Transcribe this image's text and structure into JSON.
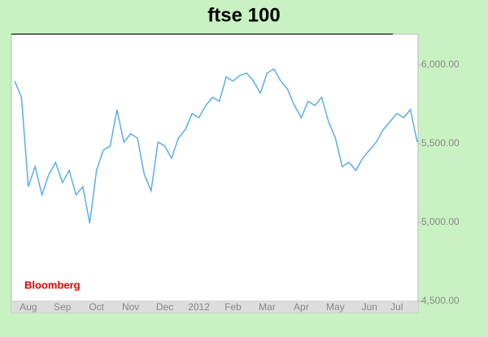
{
  "chart_data": {
    "type": "line",
    "title": "ftse 100",
    "source": "Bloomberg",
    "categories": [
      null,
      null,
      "Aug",
      null,
      null,
      null,
      null,
      "Sep",
      null,
      null,
      null,
      null,
      "Oct",
      null,
      null,
      null,
      null,
      "Nov",
      null,
      null,
      null,
      null,
      "Dec",
      null,
      null,
      null,
      null,
      "2012",
      null,
      null,
      null,
      null,
      "Feb",
      null,
      null,
      null,
      null,
      "Mar",
      null,
      null,
      null,
      null,
      "Apr",
      null,
      null,
      null,
      null,
      "May",
      null,
      null,
      null,
      null,
      "Jun",
      null,
      null,
      null,
      "Jul",
      null,
      null,
      null
    ],
    "series": [
      {
        "color": "#5aaee6",
        "values": [
          5897,
          5794,
          5227,
          5355,
          5175,
          5304,
          5381,
          5253,
          5330,
          5175,
          5227,
          4995,
          5330,
          5459,
          5485,
          5716,
          5510,
          5562,
          5536,
          5304,
          5201,
          5510,
          5485,
          5407,
          5536,
          5588,
          5691,
          5665,
          5742,
          5794,
          5768,
          5923,
          5897,
          5933,
          5948,
          5897,
          5820,
          5948,
          5974,
          5897,
          5845,
          5742,
          5665,
          5768,
          5742,
          5794,
          5639,
          5536,
          5355,
          5381,
          5330,
          5407,
          5459,
          5510,
          5588,
          5639,
          5691,
          5665,
          5716,
          5510
        ]
      }
    ],
    "ylim": [
      4500,
      6195
    ],
    "yticks": [
      {
        "value": 4500,
        "label": "4,500.00"
      },
      {
        "value": 5000,
        "label": "5,000.00"
      },
      {
        "value": 5500,
        "label": "5,500.00"
      },
      {
        "value": 6000,
        "label": "6,000.00"
      }
    ],
    "grid": false
  }
}
